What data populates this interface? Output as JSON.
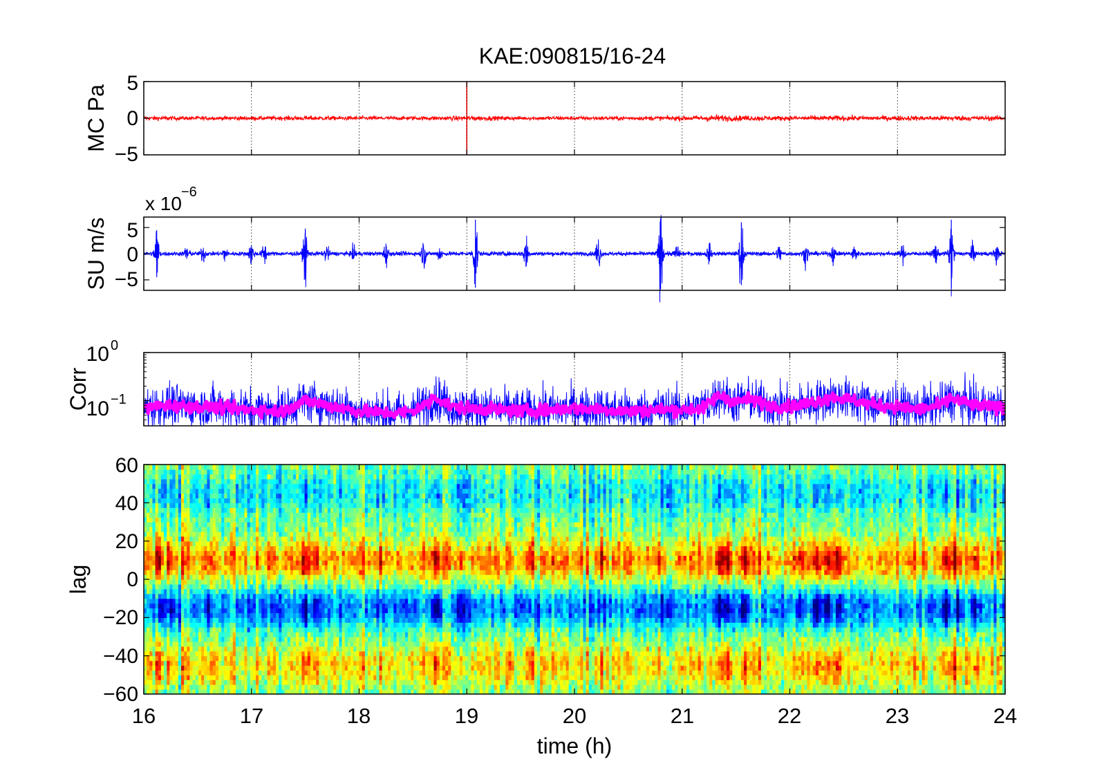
{
  "figure": {
    "title": "KAE:090815/16-24",
    "xlabel": "time (h)",
    "x_ticks": [
      "16",
      "17",
      "18",
      "19",
      "20",
      "21",
      "22",
      "23",
      "24"
    ]
  },
  "chart_data": [
    {
      "type": "line",
      "panel": "MC",
      "ylabel": "MC Pa",
      "y_ticks": [
        "5",
        "0",
        "−5"
      ],
      "xlim": [
        16,
        24
      ],
      "ylim": [
        -5,
        5
      ],
      "grid": "vertical dotted",
      "series": [
        {
          "color": "#ff0000",
          "x": [
            16.0,
            16.5,
            17.0,
            17.5,
            18.0,
            18.5,
            19.0,
            19.5,
            20.0,
            20.5,
            21.0,
            21.3,
            21.5,
            22.0,
            22.5,
            23.0,
            23.5,
            24.0
          ],
          "amplitude": [
            0.3,
            0.25,
            0.25,
            0.3,
            0.25,
            0.25,
            0.3,
            0.25,
            0.25,
            0.25,
            0.3,
            0.45,
            0.35,
            0.3,
            0.35,
            0.3,
            0.35,
            0.3
          ],
          "spikes": [
            {
              "x": 19.0,
              "min": -5.0,
              "max": 5.0
            }
          ]
        }
      ]
    },
    {
      "type": "line",
      "panel": "SU",
      "ylabel": "SU m/s",
      "y_multiplier": "x 10",
      "y_multiplier_exponent": "−6",
      "y_ticks": [
        "5",
        "0",
        "−5"
      ],
      "xlim": [
        16,
        24
      ],
      "ylim": [
        -7,
        7
      ],
      "grid": "vertical dotted",
      "series": [
        {
          "color": "#0000ff",
          "baseline_amplitude": 0.2,
          "bursts": [
            {
              "x": 16.12,
              "amp": 4.5
            },
            {
              "x": 16.4,
              "amp": 1.5
            },
            {
              "x": 16.55,
              "amp": 1.5
            },
            {
              "x": 16.75,
              "amp": 1.2
            },
            {
              "x": 17.0,
              "amp": 2.0
            },
            {
              "x": 17.12,
              "amp": 2.0
            },
            {
              "x": 17.5,
              "amp": 4.8
            },
            {
              "x": 17.7,
              "amp": 1.5
            },
            {
              "x": 17.95,
              "amp": 1.2
            },
            {
              "x": 18.25,
              "amp": 2.0
            },
            {
              "x": 18.6,
              "amp": 2.5
            },
            {
              "x": 18.75,
              "amp": 1.2
            },
            {
              "x": 19.08,
              "amp": 6.5
            },
            {
              "x": 19.55,
              "amp": 3.5
            },
            {
              "x": 20.22,
              "amp": 3.0
            },
            {
              "x": 20.8,
              "amp": 6.8
            },
            {
              "x": 20.95,
              "amp": 1.5
            },
            {
              "x": 21.25,
              "amp": 1.5
            },
            {
              "x": 21.55,
              "amp": 6.0
            },
            {
              "x": 21.9,
              "amp": 1.5
            },
            {
              "x": 22.15,
              "amp": 2.0
            },
            {
              "x": 22.4,
              "amp": 1.5
            },
            {
              "x": 22.6,
              "amp": 1.5
            },
            {
              "x": 23.05,
              "amp": 1.5
            },
            {
              "x": 23.35,
              "amp": 2.0
            },
            {
              "x": 23.5,
              "amp": 6.5
            },
            {
              "x": 23.7,
              "amp": 1.5
            },
            {
              "x": 23.92,
              "amp": 1.5
            }
          ]
        }
      ]
    },
    {
      "type": "line",
      "panel": "Corr",
      "ylabel": "Corr",
      "yscale": "log",
      "y_ticks": [
        {
          "base": "10",
          "exp": "0",
          "value": 1
        },
        {
          "base": "10",
          "exp": "−1",
          "value": 0.1
        }
      ],
      "xlim": [
        16,
        24
      ],
      "ylim": [
        0.03,
        1
      ],
      "grid": "vertical dotted",
      "series": [
        {
          "color": "#0000ff",
          "x": [
            16.0,
            16.2,
            16.5,
            16.8,
            17.0,
            17.3,
            17.5,
            17.7,
            18.0,
            18.3,
            18.5,
            18.65,
            18.7,
            18.85,
            19.0,
            19.3,
            19.5,
            19.8,
            20.0,
            20.3,
            20.5,
            20.8,
            21.0,
            21.2,
            21.35,
            21.5,
            21.6,
            21.8,
            22.0,
            22.2,
            22.4,
            22.6,
            22.8,
            23.0,
            23.2,
            23.4,
            23.5,
            23.7,
            24.0
          ],
          "y": [
            0.07,
            0.08,
            0.075,
            0.07,
            0.065,
            0.06,
            0.1,
            0.08,
            0.06,
            0.055,
            0.06,
            0.09,
            0.12,
            0.075,
            0.07,
            0.065,
            0.06,
            0.065,
            0.07,
            0.065,
            0.06,
            0.065,
            0.065,
            0.07,
            0.13,
            0.09,
            0.11,
            0.08,
            0.075,
            0.09,
            0.12,
            0.1,
            0.08,
            0.075,
            0.065,
            0.08,
            0.11,
            0.08,
            0.07
          ]
        },
        {
          "color": "#ff00ff",
          "x": [
            16.0,
            16.2,
            16.5,
            16.8,
            17.0,
            17.3,
            17.5,
            17.7,
            18.0,
            18.3,
            18.5,
            18.65,
            18.7,
            18.85,
            19.0,
            19.3,
            19.5,
            19.8,
            20.0,
            20.3,
            20.5,
            20.8,
            21.0,
            21.2,
            21.35,
            21.5,
            21.6,
            21.8,
            22.0,
            22.2,
            22.4,
            22.6,
            22.8,
            23.0,
            23.2,
            23.4,
            23.5,
            23.7,
            24.0
          ],
          "y": [
            0.07,
            0.08,
            0.075,
            0.07,
            0.065,
            0.06,
            0.1,
            0.08,
            0.06,
            0.055,
            0.06,
            0.09,
            0.12,
            0.075,
            0.07,
            0.065,
            0.06,
            0.065,
            0.07,
            0.065,
            0.06,
            0.065,
            0.065,
            0.07,
            0.13,
            0.09,
            0.11,
            0.08,
            0.075,
            0.09,
            0.12,
            0.1,
            0.08,
            0.075,
            0.065,
            0.08,
            0.11,
            0.08,
            0.07
          ]
        }
      ]
    },
    {
      "type": "heatmap",
      "panel": "lag",
      "ylabel": "lag",
      "y_ticks": [
        "60",
        "40",
        "20",
        "0",
        "−20",
        "−40",
        "−60"
      ],
      "xlim": [
        16,
        24
      ],
      "ylim": [
        -60,
        60
      ],
      "colormap": "jet",
      "bands": [
        {
          "lag_center": 45,
          "value": -0.25
        },
        {
          "lag_center": 10,
          "value": 0.45
        },
        {
          "lag_center": -15,
          "value": -0.5
        },
        {
          "lag_center": -45,
          "value": 0.3
        }
      ],
      "strong_columns": [
        {
          "x": 16.15,
          "strength": 0.7
        },
        {
          "x": 16.25,
          "strength": 0.6
        },
        {
          "x": 16.6,
          "strength": 0.5
        },
        {
          "x": 17.2,
          "strength": 0.4
        },
        {
          "x": 17.5,
          "strength": 0.9
        },
        {
          "x": 17.6,
          "strength": 0.6
        },
        {
          "x": 18.2,
          "strength": 0.4
        },
        {
          "x": 18.72,
          "strength": 1.0
        },
        {
          "x": 18.95,
          "strength": 0.5
        },
        {
          "x": 19.6,
          "strength": 0.4
        },
        {
          "x": 20.25,
          "strength": 0.5
        },
        {
          "x": 20.8,
          "strength": 0.4
        },
        {
          "x": 21.35,
          "strength": 1.0
        },
        {
          "x": 21.42,
          "strength": 0.9
        },
        {
          "x": 21.58,
          "strength": 0.9
        },
        {
          "x": 22.1,
          "strength": 0.6
        },
        {
          "x": 22.25,
          "strength": 0.9
        },
        {
          "x": 22.35,
          "strength": 0.9
        },
        {
          "x": 22.45,
          "strength": 0.8
        },
        {
          "x": 23.45,
          "strength": 0.9
        },
        {
          "x": 23.55,
          "strength": 0.8
        },
        {
          "x": 23.72,
          "strength": 0.6
        }
      ]
    }
  ]
}
